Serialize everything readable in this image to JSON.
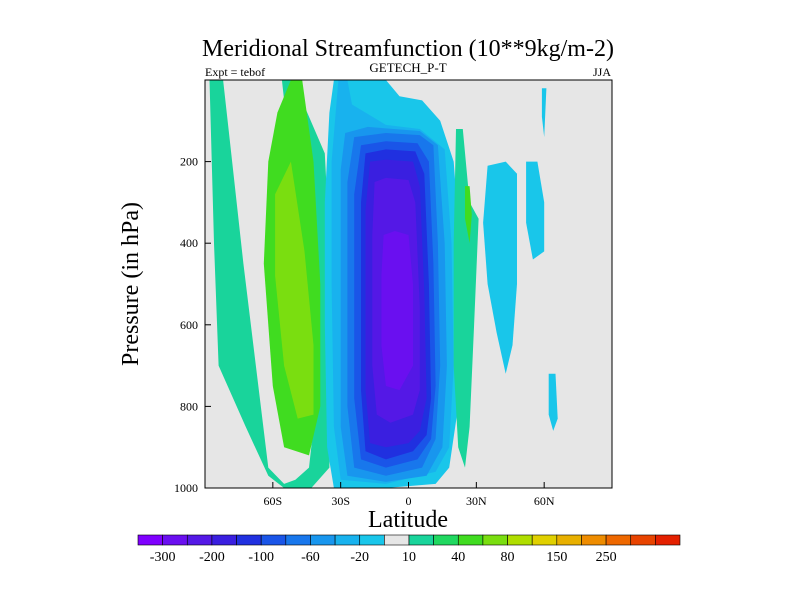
{
  "chart_data": {
    "type": "heatmap",
    "title": "Meridional Streamfunction (10**9kg/m-2)",
    "left_label": "Expt = tebof",
    "center_label": "GETECH_P-T",
    "right_label": "JJA",
    "xlabel": "Latitude",
    "ylabel": "Pressure (in hPa)",
    "xlim": [
      -90,
      90
    ],
    "ylim": [
      0,
      1000
    ],
    "y_inverted": true,
    "x_ticks": [
      {
        "value": -60,
        "label": "60S"
      },
      {
        "value": -30,
        "label": "30S"
      },
      {
        "value": 0,
        "label": "0"
      },
      {
        "value": 30,
        "label": "30N"
      },
      {
        "value": 60,
        "label": "60N"
      }
    ],
    "y_ticks": [
      {
        "value": 200,
        "label": "200"
      },
      {
        "value": 400,
        "label": "400"
      },
      {
        "value": 600,
        "label": "600"
      },
      {
        "value": 800,
        "label": "800"
      },
      {
        "value": 1000,
        "label": "1000"
      }
    ],
    "background_color": "#e6e6e6",
    "colorbar": {
      "colors": [
        "#7f00ff",
        "#6a0ff0",
        "#5418e6",
        "#3a1fe0",
        "#2030e0",
        "#1a55e8",
        "#1877ec",
        "#1896ee",
        "#18b2ee",
        "#19c6ea",
        "#e6e6e6",
        "#19d49b",
        "#20d860",
        "#40dc20",
        "#7ade10",
        "#b0de00",
        "#e0d000",
        "#e8b000",
        "#ee8c00",
        "#ee6800",
        "#e84400",
        "#e42000"
      ],
      "labels": [
        {
          "boundary": 1,
          "text": "-300"
        },
        {
          "boundary": 3,
          "text": "-200"
        },
        {
          "boundary": 5,
          "text": "-100"
        },
        {
          "boundary": 7,
          "text": "-60"
        },
        {
          "boundary": 9,
          "text": "-20"
        },
        {
          "boundary": 11,
          "text": "10"
        },
        {
          "boundary": 13,
          "text": "40"
        },
        {
          "boundary": 15,
          "text": "80"
        },
        {
          "boundary": 17,
          "text": "150"
        },
        {
          "boundary": 19,
          "text": "250"
        }
      ]
    },
    "contour_regions": [
      {
        "color": "#19d49b",
        "points": [
          [
            -88,
            0
          ],
          [
            -82,
            0
          ],
          [
            -79,
            150
          ],
          [
            -73,
            450
          ],
          [
            -62,
            950
          ],
          [
            -55,
            990
          ],
          [
            -50,
            980
          ],
          [
            -44,
            950
          ],
          [
            -41,
            800
          ],
          [
            -47,
            500
          ],
          [
            -52,
            200
          ],
          [
            -56,
            0
          ],
          [
            -51,
            0
          ],
          [
            -37,
            180
          ],
          [
            -35,
            400
          ],
          [
            -35,
            700
          ],
          [
            -35,
            950
          ],
          [
            -43,
            1000
          ],
          [
            -55,
            1000
          ],
          [
            -62,
            970
          ],
          [
            -72,
            850
          ],
          [
            -84,
            700
          ],
          [
            -86,
            400
          ]
        ]
      },
      {
        "color": "#40dc20",
        "points": [
          [
            -52,
            0
          ],
          [
            -47,
            0
          ],
          [
            -42,
            200
          ],
          [
            -39,
            500
          ],
          [
            -39,
            800
          ],
          [
            -44,
            920
          ],
          [
            -55,
            900
          ],
          [
            -60,
            750
          ],
          [
            -64,
            450
          ],
          [
            -62,
            200
          ],
          [
            -58,
            80
          ]
        ]
      },
      {
        "color": "#7ade10",
        "points": [
          [
            -59,
            280
          ],
          [
            -52,
            200
          ],
          [
            -46,
            420
          ],
          [
            -42,
            650
          ],
          [
            -42,
            820
          ],
          [
            -49,
            830
          ],
          [
            -55,
            700
          ],
          [
            -59,
            480
          ]
        ]
      },
      {
        "color": "#19c6ea",
        "points": [
          [
            -33,
            0
          ],
          [
            -10,
            0
          ],
          [
            -4,
            40
          ],
          [
            6,
            50
          ],
          [
            14,
            100
          ],
          [
            20,
            200
          ],
          [
            24,
            500
          ],
          [
            22,
            800
          ],
          [
            18,
            950
          ],
          [
            12,
            990
          ],
          [
            -10,
            1000
          ],
          [
            -33,
            1000
          ],
          [
            -36,
            900
          ],
          [
            -37,
            600
          ],
          [
            -37,
            300
          ],
          [
            -35,
            80
          ]
        ]
      },
      {
        "color": "#18b2ee",
        "points": [
          [
            -31,
            0
          ],
          [
            -27,
            0
          ],
          [
            -25,
            60
          ],
          [
            -10,
            110
          ],
          [
            5,
            120
          ],
          [
            16,
            170
          ],
          [
            19,
            400
          ],
          [
            20,
            700
          ],
          [
            18,
            900
          ],
          [
            12,
            960
          ],
          [
            -10,
            990
          ],
          [
            -30,
            980
          ],
          [
            -33,
            850
          ],
          [
            -34,
            500
          ],
          [
            -34,
            200
          ]
        ]
      },
      {
        "color": "#1896ee",
        "points": [
          [
            -30,
            220
          ],
          [
            -28,
            130
          ],
          [
            -18,
            115
          ],
          [
            5,
            125
          ],
          [
            13,
            160
          ],
          [
            16,
            400
          ],
          [
            17,
            700
          ],
          [
            15,
            900
          ],
          [
            8,
            970
          ],
          [
            -10,
            985
          ],
          [
            -27,
            970
          ],
          [
            -30,
            850
          ]
        ]
      },
      {
        "color": "#1877ec",
        "points": [
          [
            -27,
            250
          ],
          [
            -24,
            140
          ],
          [
            -10,
            130
          ],
          [
            5,
            135
          ],
          [
            11,
            160
          ],
          [
            13,
            400
          ],
          [
            14,
            700
          ],
          [
            12,
            880
          ],
          [
            6,
            950
          ],
          [
            -10,
            970
          ],
          [
            -24,
            950
          ],
          [
            -27,
            800
          ]
        ]
      },
      {
        "color": "#1a55e8",
        "points": [
          [
            -24,
            280
          ],
          [
            -21,
            160
          ],
          [
            -10,
            150
          ],
          [
            4,
            155
          ],
          [
            9,
            200
          ],
          [
            11,
            450
          ],
          [
            12,
            750
          ],
          [
            10,
            880
          ],
          [
            4,
            930
          ],
          [
            -10,
            950
          ],
          [
            -21,
            930
          ],
          [
            -24,
            780
          ]
        ]
      },
      {
        "color": "#2030e0",
        "points": [
          [
            -21,
            300
          ],
          [
            -19,
            180
          ],
          [
            -10,
            170
          ],
          [
            3,
            175
          ],
          [
            7,
            230
          ],
          [
            9,
            500
          ],
          [
            10,
            780
          ],
          [
            8,
            870
          ],
          [
            2,
            910
          ],
          [
            -10,
            930
          ],
          [
            -19,
            910
          ],
          [
            -21,
            760
          ]
        ]
      },
      {
        "color": "#3a1fe0",
        "points": [
          [
            -19,
            320
          ],
          [
            -17,
            200
          ],
          [
            -10,
            195
          ],
          [
            2,
            200
          ],
          [
            5,
            260
          ],
          [
            7,
            520
          ],
          [
            8,
            780
          ],
          [
            5,
            860
          ],
          [
            0,
            890
          ],
          [
            -10,
            900
          ],
          [
            -17,
            890
          ],
          [
            -19,
            760
          ]
        ]
      },
      {
        "color": "#5418e6",
        "points": [
          [
            -16,
            380
          ],
          [
            -15,
            250
          ],
          [
            -10,
            240
          ],
          [
            0,
            245
          ],
          [
            3,
            300
          ],
          [
            5,
            560
          ],
          [
            5,
            760
          ],
          [
            2,
            820
          ],
          [
            -8,
            840
          ],
          [
            -14,
            820
          ],
          [
            -16,
            700
          ]
        ]
      },
      {
        "color": "#6a0ff0",
        "points": [
          [
            -12,
            480
          ],
          [
            -11,
            380
          ],
          [
            -6,
            370
          ],
          [
            0,
            380
          ],
          [
            2,
            500
          ],
          [
            2,
            700
          ],
          [
            -4,
            760
          ],
          [
            -10,
            750
          ],
          [
            -12,
            650
          ]
        ]
      },
      {
        "color": "#19d49b",
        "points": [
          [
            21,
            120
          ],
          [
            24,
            120
          ],
          [
            27,
            300
          ],
          [
            31,
            340
          ],
          [
            29,
            600
          ],
          [
            27,
            850
          ],
          [
            25,
            950
          ],
          [
            22,
            900
          ],
          [
            20,
            700
          ],
          [
            20,
            400
          ]
        ]
      },
      {
        "color": "#40dc20",
        "points": [
          [
            25,
            260
          ],
          [
            27,
            260
          ],
          [
            28,
            330
          ],
          [
            27,
            400
          ],
          [
            25,
            340
          ]
        ]
      },
      {
        "color": "#19c6ea",
        "points": [
          [
            35,
            210
          ],
          [
            43,
            200
          ],
          [
            48,
            230
          ],
          [
            48,
            500
          ],
          [
            46,
            650
          ],
          [
            43,
            720
          ],
          [
            39,
            620
          ],
          [
            35,
            500
          ],
          [
            33,
            350
          ]
        ]
      },
      {
        "color": "#19c6ea",
        "points": [
          [
            52,
            200
          ],
          [
            57,
            200
          ],
          [
            60,
            300
          ],
          [
            60,
            420
          ],
          [
            55,
            440
          ],
          [
            52,
            350
          ]
        ]
      },
      {
        "color": "#19c6ea",
        "points": [
          [
            59,
            20
          ],
          [
            61,
            20
          ],
          [
            60,
            140
          ],
          [
            59,
            90
          ]
        ]
      },
      {
        "color": "#19c6ea",
        "points": [
          [
            62,
            720
          ],
          [
            65,
            720
          ],
          [
            66,
            830
          ],
          [
            64,
            860
          ],
          [
            62,
            820
          ]
        ]
      }
    ]
  }
}
